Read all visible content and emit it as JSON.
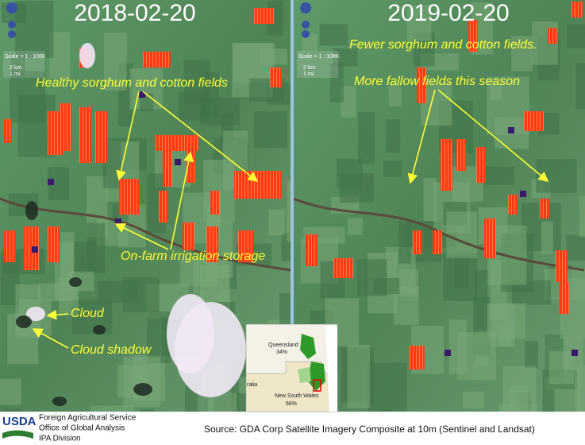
{
  "panels": [
    {
      "date": "2018-02-20",
      "scale": "Scale = 1 : 108K",
      "scale_km": "2 km",
      "scale_mi": "1 mi",
      "annotations": [
        "Healthy sorghum and cotton fields",
        "On-farm irrigation storage",
        "Cloud",
        "Cloud shadow"
      ]
    },
    {
      "date": "2019-02-20",
      "scale": "Scale = 1 : 108K",
      "scale_km": "2 km",
      "scale_mi": "1 mi",
      "annotations": [
        "Fewer sorghum and cotton fields.",
        "More fallow fields this season"
      ]
    }
  ],
  "inset": {
    "labels": [
      "Queensland",
      "34%",
      "ralia",
      "New South Wales",
      "66%"
    ]
  },
  "footer": {
    "logo": "USDA",
    "agency": [
      "Foreign Agricultural Service",
      "Office of Global Analysis",
      "IPA Division"
    ],
    "source": "Source: GDA Corp Satellite Imagery Composite at 10m (Sentinel and Landsat)"
  }
}
